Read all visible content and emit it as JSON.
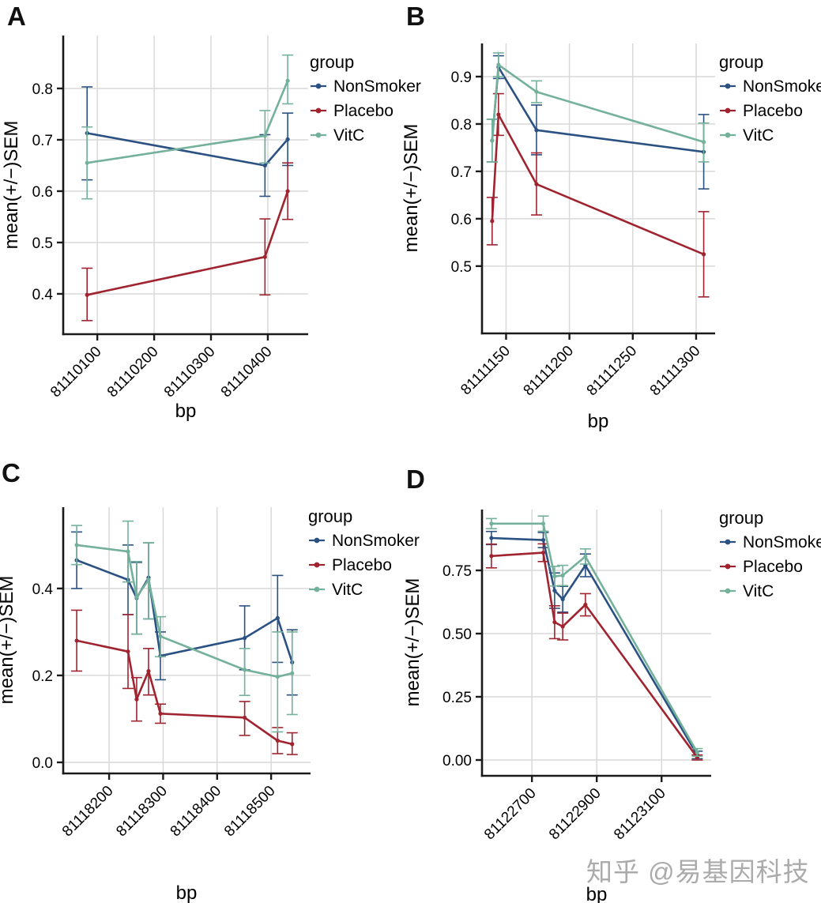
{
  "figure": {
    "background": "#ffffff",
    "watermark_text": "知乎 @易基因科技",
    "watermark_color": "#ababab",
    "grid_color": "#d9d9d9",
    "axis_color": "#1a1a1a",
    "text_color": "#000000"
  },
  "legend": {
    "title": "group",
    "entries": [
      "NonSmoker",
      "Placebo",
      "VitC"
    ],
    "colors": {
      "NonSmoker": "#2b5183",
      "Placebo": "#a02430",
      "VitC": "#74b19b"
    }
  },
  "chart_data": [
    {
      "panel_label": "A",
      "type": "line",
      "xlabel": "bp",
      "ylabel": "mean(+/−)SEM",
      "legend_title": "group",
      "legend_position": "right-top",
      "grid": true,
      "x_domain": [
        81110040,
        81110471
      ],
      "y_domain": [
        0.3215,
        0.903
      ],
      "x_ticks": [
        {
          "value": 81110100,
          "label": "81110100"
        },
        {
          "value": 81110200,
          "label": "81110200"
        },
        {
          "value": 81110300,
          "label": "81110300"
        },
        {
          "value": 81110400,
          "label": "81110400"
        }
      ],
      "y_ticks": [
        {
          "value": 0.4,
          "label": "0.4"
        },
        {
          "value": 0.5,
          "label": "0.5"
        },
        {
          "value": 0.6,
          "label": "0.6"
        },
        {
          "value": 0.7,
          "label": "0.7"
        },
        {
          "value": 0.8,
          "label": "0.8"
        }
      ],
      "series": [
        {
          "name": "NonSmoker",
          "color": "#2b5183",
          "x": [
            81110082,
            81110395,
            81110435
          ],
          "y": [
            0.713,
            0.65,
            0.701
          ],
          "err_lo": [
            0.622,
            0.59,
            0.65
          ],
          "err_hi": [
            0.803,
            0.71,
            0.752
          ]
        },
        {
          "name": "Placebo",
          "color": "#a02430",
          "x": [
            81110082,
            81110395,
            81110435
          ],
          "y": [
            0.398,
            0.472,
            0.6
          ],
          "err_lo": [
            0.348,
            0.398,
            0.545
          ],
          "err_hi": [
            0.45,
            0.546,
            0.655
          ]
        },
        {
          "name": "VitC",
          "color": "#74b19b",
          "x": [
            81110082,
            81110395,
            81110435
          ],
          "y": [
            0.655,
            0.708,
            0.815
          ],
          "err_lo": [
            0.585,
            0.655,
            0.77
          ],
          "err_hi": [
            0.725,
            0.757,
            0.865
          ]
        }
      ]
    },
    {
      "panel_label": "B",
      "type": "line",
      "xlabel": "bp",
      "ylabel": "mean(+/−)SEM",
      "legend_title": "group",
      "legend_position": "right-top",
      "grid": true,
      "x_domain": [
        81111131,
        81111315
      ],
      "y_domain": [
        0.358,
        0.97
      ],
      "x_ticks": [
        {
          "value": 81111150,
          "label": "81111150"
        },
        {
          "value": 81111200,
          "label": "81111200"
        },
        {
          "value": 81111250,
          "label": "81111250"
        },
        {
          "value": 81111300,
          "label": "81111300"
        }
      ],
      "y_ticks": [
        {
          "value": 0.5,
          "label": "0.5"
        },
        {
          "value": 0.6,
          "label": "0.6"
        },
        {
          "value": 0.7,
          "label": "0.7"
        },
        {
          "value": 0.8,
          "label": "0.8"
        },
        {
          "value": 0.9,
          "label": "0.9"
        }
      ],
      "series": [
        {
          "name": "NonSmoker",
          "color": "#2b5183",
          "x": [
            81111139,
            81111144,
            81111174,
            81111306
          ],
          "y": [
            0.765,
            0.92,
            0.787,
            0.741
          ],
          "err_lo": [
            0.72,
            0.896,
            0.735,
            0.663
          ],
          "err_hi": [
            0.81,
            0.944,
            0.84,
            0.82
          ]
        },
        {
          "name": "Placebo",
          "color": "#a02430",
          "x": [
            81111139,
            81111144,
            81111174,
            81111306
          ],
          "y": [
            0.595,
            0.82,
            0.673,
            0.525
          ],
          "err_lo": [
            0.545,
            0.776,
            0.608,
            0.435
          ],
          "err_hi": [
            0.645,
            0.864,
            0.739,
            0.615
          ]
        },
        {
          "name": "VitC",
          "color": "#74b19b",
          "x": [
            81111139,
            81111144,
            81111174,
            81111306
          ],
          "y": [
            0.765,
            0.925,
            0.868,
            0.762
          ],
          "err_lo": [
            0.72,
            0.9,
            0.845,
            0.72
          ],
          "err_hi": [
            0.81,
            0.95,
            0.891,
            0.802
          ]
        }
      ]
    },
    {
      "panel_label": "C",
      "type": "line",
      "xlabel": "bp",
      "ylabel": "mean(+/−)SEM",
      "legend_title": "group",
      "legend_position": "right-top",
      "grid": true,
      "x_domain": [
        81118115,
        81118573
      ],
      "y_domain": [
        -0.0255,
        0.587
      ],
      "x_ticks": [
        {
          "value": 81118200,
          "label": "81118200"
        },
        {
          "value": 81118300,
          "label": "81118300"
        },
        {
          "value": 81118400,
          "label": "81118400"
        },
        {
          "value": 81118500,
          "label": "81118500"
        }
      ],
      "y_ticks": [
        {
          "value": 0.0,
          "label": "0.0"
        },
        {
          "value": 0.2,
          "label": "0.2"
        },
        {
          "value": 0.4,
          "label": "0.4"
        }
      ],
      "series": [
        {
          "name": "NonSmoker",
          "color": "#2b5183",
          "x": [
            81118140,
            81118235,
            81118251,
            81118273,
            81118295,
            81118451,
            81118512,
            81118539
          ],
          "y": [
            0.465,
            0.42,
            0.378,
            0.425,
            0.245,
            0.286,
            0.332,
            0.23
          ],
          "err_lo": [
            0.4,
            0.34,
            0.295,
            0.33,
            0.19,
            0.213,
            0.23,
            0.155
          ],
          "err_hi": [
            0.53,
            0.5,
            0.46,
            0.505,
            0.3,
            0.36,
            0.43,
            0.305
          ]
        },
        {
          "name": "Placebo",
          "color": "#a02430",
          "x": [
            81118140,
            81118235,
            81118251,
            81118273,
            81118295,
            81118451,
            81118512,
            81118539
          ],
          "y": [
            0.28,
            0.255,
            0.145,
            0.21,
            0.112,
            0.103,
            0.05,
            0.042
          ],
          "err_lo": [
            0.21,
            0.17,
            0.095,
            0.155,
            0.09,
            0.062,
            0.02,
            0.018
          ],
          "err_hi": [
            0.35,
            0.34,
            0.195,
            0.262,
            0.134,
            0.14,
            0.08,
            0.068
          ]
        },
        {
          "name": "VitC",
          "color": "#74b19b",
          "x": [
            81118140,
            81118235,
            81118251,
            81118273,
            81118295,
            81118451,
            81118512,
            81118539
          ],
          "y": [
            0.5,
            0.485,
            0.38,
            0.42,
            0.29,
            0.213,
            0.197,
            0.205
          ],
          "err_lo": [
            0.455,
            0.415,
            0.295,
            0.33,
            0.243,
            0.154,
            0.07,
            0.11
          ],
          "err_hi": [
            0.545,
            0.555,
            0.462,
            0.505,
            0.335,
            0.262,
            0.3,
            0.3
          ]
        }
      ]
    },
    {
      "panel_label": "D",
      "type": "line",
      "xlabel": "bp",
      "ylabel": "mean(+/−)SEM",
      "legend_title": "group",
      "legend_position": "right-top",
      "grid": true,
      "x_domain": [
        81122546,
        81123253
      ],
      "y_domain": [
        -0.0625,
        0.9906
      ],
      "x_ticks": [
        {
          "value": 81122700,
          "label": "81122700"
        },
        {
          "value": 81122900,
          "label": "81122900"
        },
        {
          "value": 81123100,
          "label": "81123100"
        }
      ],
      "y_ticks": [
        {
          "value": 0.0,
          "label": "0.00"
        },
        {
          "value": 0.25,
          "label": "0.25"
        },
        {
          "value": 0.5,
          "label": "0.50"
        },
        {
          "value": 0.75,
          "label": "0.75"
        }
      ],
      "series": [
        {
          "name": "NonSmoker",
          "color": "#2b5183",
          "x": [
            81122575,
            81122735,
            81122770,
            81122795,
            81122865,
            81123210
          ],
          "y": [
            0.878,
            0.87,
            0.67,
            0.636,
            0.77,
            0.02
          ],
          "err_lo": [
            0.852,
            0.84,
            0.6,
            0.585,
            0.725,
            0.005
          ],
          "err_hi": [
            0.904,
            0.9,
            0.74,
            0.687,
            0.815,
            0.035
          ]
        },
        {
          "name": "Placebo",
          "color": "#a02430",
          "x": [
            81122575,
            81122735,
            81122770,
            81122795,
            81122865,
            81123210
          ],
          "y": [
            0.807,
            0.82,
            0.545,
            0.528,
            0.614,
            0.01
          ],
          "err_lo": [
            0.76,
            0.785,
            0.48,
            0.475,
            0.57,
            0.0
          ],
          "err_hi": [
            0.854,
            0.855,
            0.61,
            0.581,
            0.658,
            0.02
          ]
        },
        {
          "name": "VitC",
          "color": "#74b19b",
          "x": [
            81122575,
            81122735,
            81122770,
            81122795,
            81122865,
            81123210
          ],
          "y": [
            0.935,
            0.935,
            0.727,
            0.73,
            0.805,
            0.03
          ],
          "err_lo": [
            0.915,
            0.905,
            0.688,
            0.69,
            0.775,
            0.015
          ],
          "err_hi": [
            0.955,
            0.965,
            0.766,
            0.77,
            0.835,
            0.045
          ]
        }
      ]
    }
  ]
}
